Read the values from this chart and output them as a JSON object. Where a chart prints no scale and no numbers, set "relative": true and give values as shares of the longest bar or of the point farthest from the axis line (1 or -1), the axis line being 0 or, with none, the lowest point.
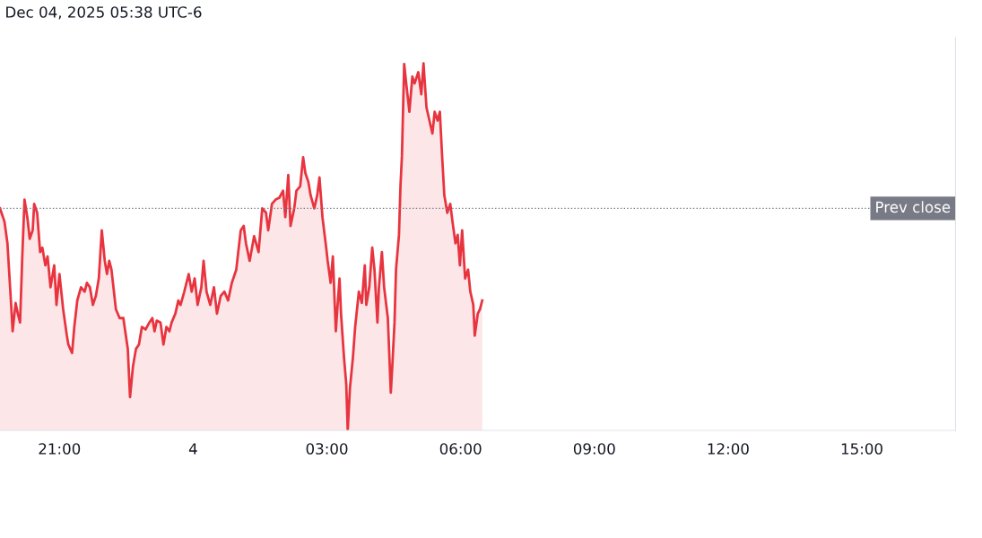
{
  "chart_data": {
    "type": "area",
    "relative": true,
    "annotations": [
      "Dec 04, 2025 05:38 UTC-6"
    ],
    "x": [
      "2025-12-03T19:40",
      "2025-12-03T19:46",
      "2025-12-03T19:50",
      "2025-12-03T19:55",
      "2025-12-03T19:57",
      "2025-12-03T20:01",
      "2025-12-03T20:04",
      "2025-12-03T20:07",
      "2025-12-03T20:10",
      "2025-12-03T20:13",
      "2025-12-03T20:17",
      "2025-12-03T20:20",
      "2025-12-03T20:24",
      "2025-12-03T20:26",
      "2025-12-03T20:30",
      "2025-12-03T20:34",
      "2025-12-03T20:37",
      "2025-12-03T20:41",
      "2025-12-03T20:44",
      "2025-12-03T20:48",
      "2025-12-03T20:53",
      "2025-12-03T20:56",
      "2025-12-03T21:00",
      "2025-12-03T21:05",
      "2025-12-03T21:10",
      "2025-12-03T21:12",
      "2025-12-03T21:17",
      "2025-12-03T21:20",
      "2025-12-03T21:24",
      "2025-12-03T21:29",
      "2025-12-03T21:34",
      "2025-12-03T21:37",
      "2025-12-03T21:41",
      "2025-12-03T21:45",
      "2025-12-03T21:49",
      "2025-12-03T21:53",
      "2025-12-03T21:57",
      "2025-12-03T22:01",
      "2025-12-03T22:04",
      "2025-12-03T22:07",
      "2025-12-03T22:10",
      "2025-12-03T22:16",
      "2025-12-03T22:21",
      "2025-12-03T22:26",
      "2025-12-03T22:32",
      "2025-12-03T22:35",
      "2025-12-03T22:39",
      "2025-12-03T22:43",
      "2025-12-03T22:47",
      "2025-12-03T22:51",
      "2025-12-03T22:56",
      "2025-12-03T23:01",
      "2025-12-03T23:05",
      "2025-12-03T23:08",
      "2025-12-03T23:11",
      "2025-12-03T23:16",
      "2025-12-03T23:20",
      "2025-12-03T23:24",
      "2025-12-03T23:28",
      "2025-12-03T23:31",
      "2025-12-03T23:36",
      "2025-12-03T23:40",
      "2025-12-03T23:43",
      "2025-12-03T23:48",
      "2025-12-03T23:54",
      "2025-12-03T23:58",
      "2025-12-04T00:02",
      "2025-12-04T00:06",
      "2025-12-04T00:11",
      "2025-12-04T00:14",
      "2025-12-04T00:18",
      "2025-12-04T00:23",
      "2025-12-04T00:28",
      "2025-12-04T00:32",
      "2025-12-04T00:37",
      "2025-12-04T00:42",
      "2025-12-04T00:47",
      "2025-12-04T00:52",
      "2025-12-04T00:58",
      "2025-12-04T01:04",
      "2025-12-04T01:08",
      "2025-12-04T01:11",
      "2025-12-04T01:16",
      "2025-12-04T01:22",
      "2025-12-04T01:28",
      "2025-12-04T01:33",
      "2025-12-04T01:38",
      "2025-12-04T01:41",
      "2025-12-04T01:46",
      "2025-12-04T01:51",
      "2025-12-04T01:56",
      "2025-12-04T02:01",
      "2025-12-04T02:04",
      "2025-12-04T02:08",
      "2025-12-04T02:11",
      "2025-12-04T02:16",
      "2025-12-04T02:19",
      "2025-12-04T02:24",
      "2025-12-04T02:28",
      "2025-12-04T02:31",
      "2025-12-04T02:35",
      "2025-12-04T02:38",
      "2025-12-04T02:43",
      "2025-12-04T02:47",
      "2025-12-04T02:50",
      "2025-12-04T02:54",
      "2025-12-04T02:59",
      "2025-12-04T03:01",
      "2025-12-04T03:05",
      "2025-12-04T03:08",
      "2025-12-04T03:12",
      "2025-12-04T03:14",
      "2025-12-04T03:17",
      "2025-12-04T03:19",
      "2025-12-04T03:23",
      "2025-12-04T03:26",
      "2025-12-04T03:28",
      "2025-12-04T03:31",
      "2025-12-04T03:35",
      "2025-12-04T03:38",
      "2025-12-04T03:43",
      "2025-12-04T03:47",
      "2025-12-04T03:51",
      "2025-12-04T03:53",
      "2025-12-04T03:57",
      "2025-12-04T04:01",
      "2025-12-04T04:04",
      "2025-12-04T04:08",
      "2025-12-04T04:10",
      "2025-12-04T04:14",
      "2025-12-04T04:17",
      "2025-12-04T04:22",
      "2025-12-04T04:26",
      "2025-12-04T04:28",
      "2025-12-04T04:31",
      "2025-12-04T04:33",
      "2025-12-04T04:37",
      "2025-12-04T04:39",
      "2025-12-04T04:41",
      "2025-12-04T04:44",
      "2025-12-04T04:47",
      "2025-12-04T04:51",
      "2025-12-04T04:55",
      "2025-12-04T04:58",
      "2025-12-04T05:03",
      "2025-12-04T05:07",
      "2025-12-04T05:10",
      "2025-12-04T05:14",
      "2025-12-04T05:18",
      "2025-12-04T05:22",
      "2025-12-04T05:25",
      "2025-12-04T05:29",
      "2025-12-04T05:32",
      "2025-12-04T05:35",
      "2025-12-04T05:38",
      "2025-12-04T05:42",
      "2025-12-04T05:46",
      "2025-12-04T05:49",
      "2025-12-04T05:53",
      "2025-12-04T05:56",
      "2025-12-04T05:59",
      "2025-12-04T06:02",
      "2025-12-04T06:06",
      "2025-12-04T06:10",
      "2025-12-04T06:13",
      "2025-12-04T06:17",
      "2025-12-04T06:19",
      "2025-12-04T06:23",
      "2025-12-04T06:26",
      "2025-12-04T06:29"
    ],
    "series": [
      {
        "color": "#e8343f",
        "values": [
          0.605,
          0.569,
          0.51,
          0.342,
          0.27,
          0.347,
          0.318,
          0.294,
          0.474,
          0.629,
          0.577,
          0.522,
          0.545,
          0.617,
          0.593,
          0.486,
          0.498,
          0.45,
          0.474,
          0.39,
          0.45,
          0.342,
          0.426,
          0.33,
          0.258,
          0.234,
          0.211,
          0.282,
          0.354,
          0.39,
          0.378,
          0.402,
          0.39,
          0.342,
          0.366,
          0.414,
          0.545,
          0.462,
          0.426,
          0.462,
          0.438,
          0.33,
          0.306,
          0.306,
          0.222,
          0.091,
          0.175,
          0.222,
          0.234,
          0.282,
          0.275,
          0.294,
          0.306,
          0.27,
          0.299,
          0.294,
          0.234,
          0.282,
          0.27,
          0.294,
          0.318,
          0.354,
          0.342,
          0.378,
          0.426,
          0.378,
          0.414,
          0.342,
          0.39,
          0.462,
          0.378,
          0.342,
          0.39,
          0.318,
          0.366,
          0.378,
          0.354,
          0.402,
          0.438,
          0.545,
          0.557,
          0.51,
          0.462,
          0.529,
          0.486,
          0.605,
          0.593,
          0.545,
          0.617,
          0.629,
          0.634,
          0.653,
          0.581,
          0.696,
          0.557,
          0.605,
          0.653,
          0.665,
          0.744,
          0.701,
          0.677,
          0.641,
          0.605,
          0.641,
          0.689,
          0.581,
          0.498,
          0.462,
          0.402,
          0.474,
          0.27,
          0.33,
          0.414,
          0.318,
          0.199,
          0.127,
          0.0,
          0.115,
          0.199,
          0.282,
          0.378,
          0.347,
          0.45,
          0.342,
          0.39,
          0.498,
          0.438,
          0.294,
          0.39,
          0.486,
          0.39,
          0.306,
          0.103,
          0.175,
          0.294,
          0.438,
          0.533,
          0.665,
          0.749,
          0.998,
          0.94,
          0.868,
          0.964,
          0.945,
          0.976,
          0.916,
          1.0,
          0.88,
          0.844,
          0.809,
          0.868,
          0.844,
          0.868,
          0.749,
          0.641,
          0.593,
          0.617,
          0.569,
          0.51,
          0.533,
          0.45,
          0.545,
          0.414,
          0.438,
          0.378,
          0.342,
          0.258,
          0.318,
          0.33,
          0.354
        ]
      }
    ],
    "xlim": [
      "2025-12-03T19:40",
      "2025-12-04T17:06"
    ],
    "xticks": [
      {
        "value": "2025-12-03T21:00",
        "label": "21:00"
      },
      {
        "value": "2025-12-04T00:00",
        "label": "4"
      },
      {
        "value": "2025-12-04T03:00",
        "label": "03:00"
      },
      {
        "value": "2025-12-04T06:00",
        "label": "06:00"
      },
      {
        "value": "2025-12-04T09:00",
        "label": "09:00"
      },
      {
        "value": "2025-12-04T12:00",
        "label": "12:00"
      },
      {
        "value": "2025-12-04T15:00",
        "label": "15:00"
      }
    ],
    "ref_lines": [
      {
        "axis": "y",
        "value": 0.605,
        "label": "Prev close",
        "color": "#787b86",
        "line_style": "dotted"
      }
    ],
    "grid": false,
    "legend": false,
    "tick_labels": "x"
  }
}
